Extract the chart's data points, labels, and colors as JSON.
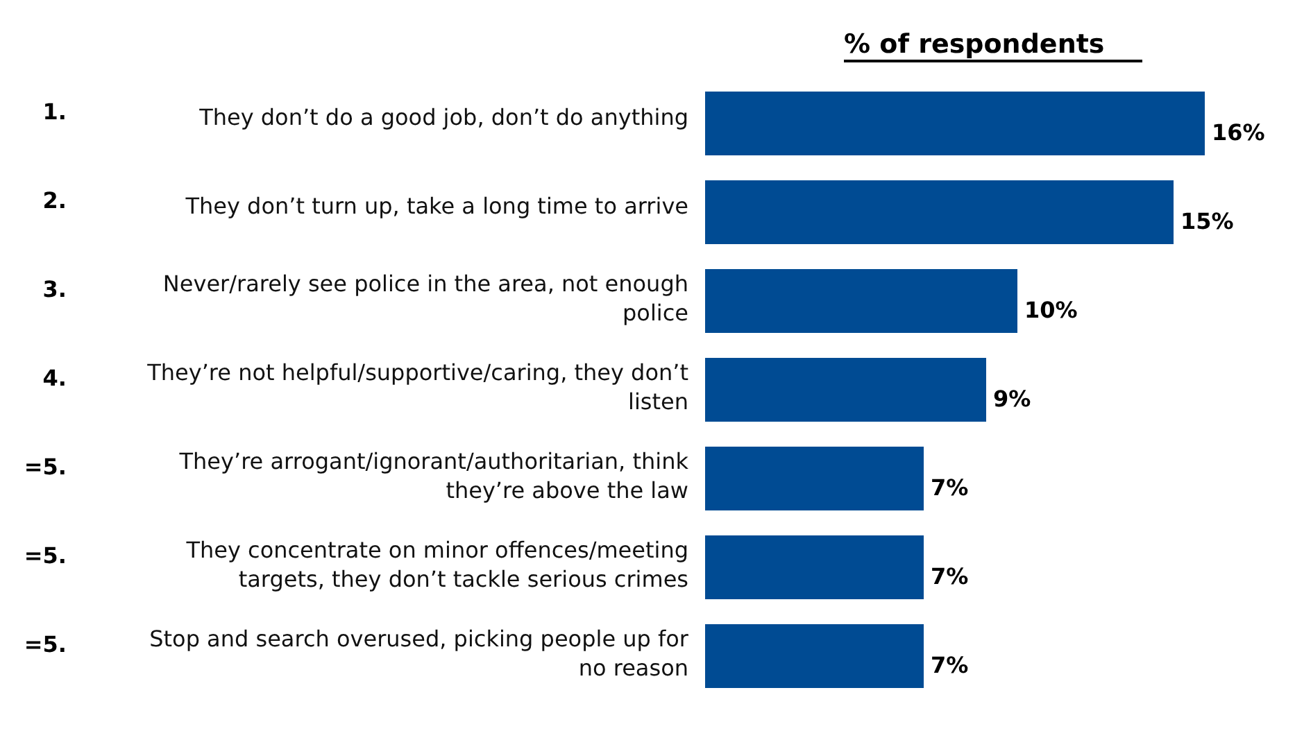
{
  "chart_data": {
    "type": "bar",
    "orientation": "horizontal",
    "xlabel": "% of respondents",
    "categories": [
      "They don’t do a good job, don’t do anything",
      "They don’t turn up, take a long time to arrive",
      "Never/rarely see police in the area, not enough police",
      "They’re not helpful/supportive/caring, they don’t listen",
      "They’re arrogant/ignorant/authoritarian, think they’re above the law",
      "They concentrate on minor offences/meeting targets, they don’t tackle serious crimes",
      "Stop and search overused, picking people up for no reason"
    ],
    "values": [
      16,
      15,
      10,
      9,
      7,
      7,
      7
    ],
    "value_labels": [
      "16%",
      "15%",
      "10%",
      "9%",
      "7%",
      "7%",
      "7%"
    ],
    "color": "#004b93",
    "annotations": [
      "1.",
      "2.",
      "3.",
      "4.",
      "=5.",
      "=5.",
      "=5."
    ]
  }
}
